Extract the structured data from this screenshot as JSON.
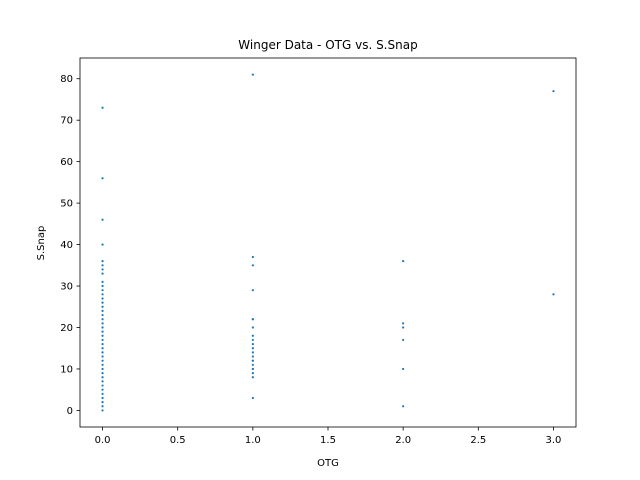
{
  "chart_data": {
    "type": "scatter",
    "title": "Winger Data - OTG vs. S.Snap",
    "xlabel": "OTG",
    "ylabel": "S.Snap",
    "xlim": [
      -0.15,
      3.15
    ],
    "ylim": [
      -4,
      85
    ],
    "xticks": [
      0.0,
      0.5,
      1.0,
      1.5,
      2.0,
      2.5,
      3.0
    ],
    "xtick_labels": [
      "0.0",
      "0.5",
      "1.0",
      "1.5",
      "2.0",
      "2.5",
      "3.0"
    ],
    "yticks": [
      0,
      10,
      20,
      30,
      40,
      50,
      60,
      70,
      80
    ],
    "ytick_labels": [
      "0",
      "10",
      "20",
      "30",
      "40",
      "50",
      "60",
      "70",
      "80"
    ],
    "grid": false,
    "marker_color": "#1f77b4",
    "series": [
      {
        "x": [
          0,
          0,
          0,
          0,
          0,
          0,
          0,
          0,
          0,
          0,
          0,
          0,
          0,
          0,
          0,
          0,
          0,
          0,
          0,
          0,
          0,
          0,
          0,
          0,
          0,
          0,
          0,
          0,
          0,
          0,
          0,
          0,
          0,
          0,
          0,
          0,
          0,
          0,
          0,
          0,
          1,
          1,
          1,
          1,
          1,
          1,
          1,
          1,
          1,
          1,
          1,
          1,
          1,
          1,
          1,
          1,
          1,
          1,
          1,
          1,
          1,
          2,
          2,
          2,
          2,
          2,
          2,
          3,
          3
        ],
        "y": [
          73,
          56,
          46,
          40,
          36,
          35,
          34,
          33,
          31,
          30,
          29,
          28,
          27,
          26,
          25,
          24,
          23,
          22,
          21,
          20,
          19,
          18,
          17,
          16,
          15,
          14,
          13,
          12,
          11,
          10,
          9,
          8,
          7,
          6,
          5,
          4,
          3,
          2,
          1,
          0,
          81,
          37,
          35,
          29,
          22,
          22,
          20,
          18,
          17,
          16,
          15,
          14,
          13,
          12,
          12,
          11,
          10,
          10,
          9,
          8,
          3,
          36,
          21,
          20,
          17,
          10,
          1,
          77,
          28
        ]
      }
    ]
  }
}
